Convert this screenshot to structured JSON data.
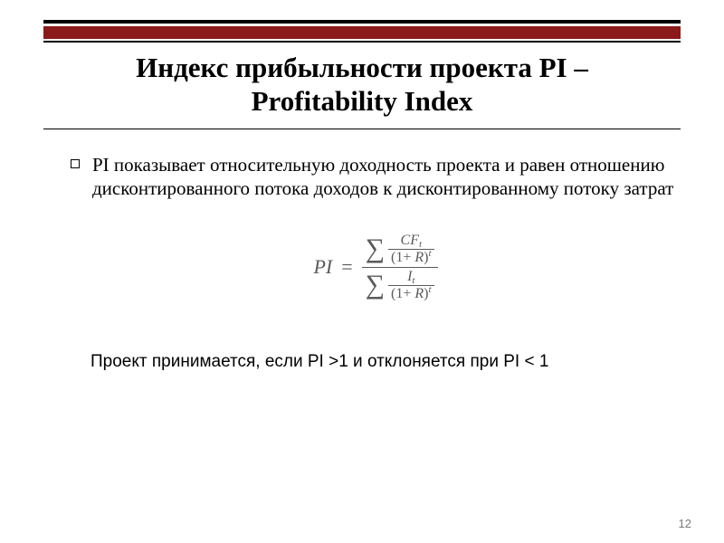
{
  "accent_color": "#8b1a1a",
  "title": {
    "line1": "Индекс прибыльности проекта PI –",
    "line2": "Profitability Index"
  },
  "bullet": {
    "text": "PI показывает относительную доходность проекта и равен отношению дисконтированного потока доходов к дисконтированному потоку затрат"
  },
  "formula": {
    "lhs": "PI",
    "eq": "=",
    "numerator": {
      "cf": "CF",
      "cf_sub": "t",
      "denom_open": "(1",
      "plus": "+",
      "r": "R",
      "denom_close": ")",
      "exp": "t"
    },
    "denominator": {
      "i": "I",
      "i_sub": "t",
      "denom_open": "(1",
      "plus": "+",
      "r": "R",
      "denom_close": ")",
      "exp": "t"
    }
  },
  "conclusion": "Проект принимается, если PI >1 и отклоняется при PI < 1",
  "page_number": "12"
}
